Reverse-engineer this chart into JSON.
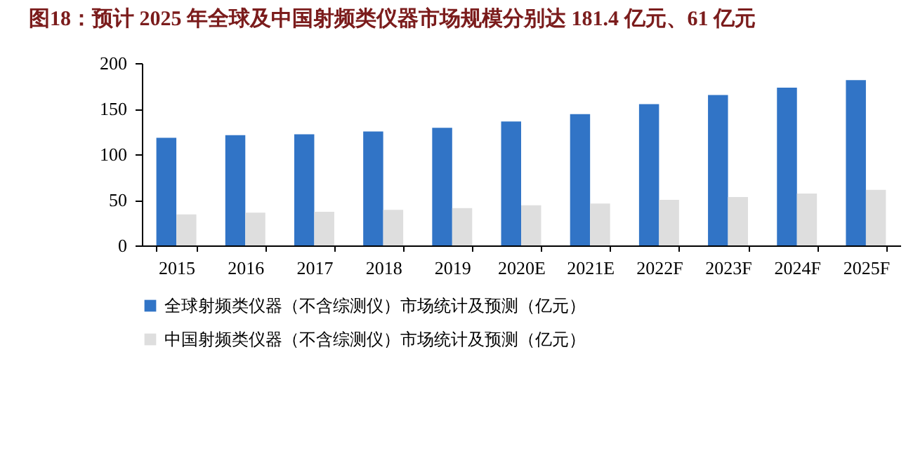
{
  "chart_data": {
    "type": "bar",
    "title": "图18：预计 2025 年全球及中国射频类仪器市场规模分别达 181.4 亿元、61 亿元",
    "categories": [
      "2015",
      "2016",
      "2017",
      "2018",
      "2019",
      "2020E",
      "2021E",
      "2022F",
      "2023F",
      "2024F",
      "2025F"
    ],
    "series": [
      {
        "name": "全球射频类仪器（不含综测仪）市场统计及预测（亿元）",
        "color": "#3174c6",
        "values": [
          118,
          121,
          122,
          125,
          129,
          136,
          144,
          155,
          165,
          173,
          181.4
        ]
      },
      {
        "name": "中国射频类仪器（不含综测仪）市场统计及预测（亿元）",
        "color": "#dedede",
        "values": [
          34,
          36,
          37,
          39,
          41,
          44,
          46,
          50,
          53,
          57,
          61
        ]
      }
    ],
    "ylim": [
      0,
      200
    ],
    "yticks": [
      0,
      50,
      100,
      150,
      200
    ],
    "grid": false,
    "legend": "bottom"
  }
}
